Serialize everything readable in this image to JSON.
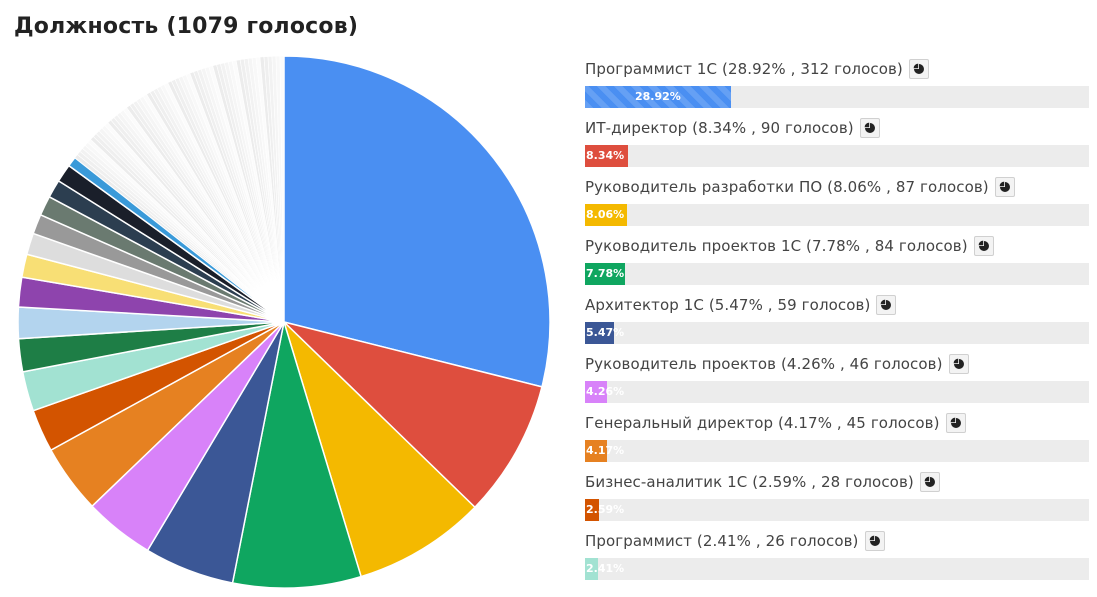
{
  "page": {
    "title": "Должность (1079 голосов)"
  },
  "chart_data": {
    "type": "pie",
    "title": "Должность (1079 голосов)",
    "total_votes": 1079,
    "slices": [
      {
        "label": "Программист 1С",
        "percent": 28.92,
        "votes": 312,
        "color": "#4a8ff2"
      },
      {
        "label": "ИТ-директор",
        "percent": 8.34,
        "votes": 90,
        "color": "#de4e3e"
      },
      {
        "label": "Руководитель разработки ПО",
        "percent": 8.06,
        "votes": 87,
        "color": "#f4b900"
      },
      {
        "label": "Руководитель проектов 1С",
        "percent": 7.78,
        "votes": 84,
        "color": "#0fa660"
      },
      {
        "label": "Архитектор 1С",
        "percent": 5.47,
        "votes": 59,
        "color": "#3b5796"
      },
      {
        "label": "Руководитель проектов",
        "percent": 4.26,
        "votes": 46,
        "color": "#d882f9"
      },
      {
        "label": "Генеральный директор",
        "percent": 4.17,
        "votes": 45,
        "color": "#e68121"
      },
      {
        "label": "Бизнес-аналитик 1С",
        "percent": 2.59,
        "votes": 28,
        "color": "#d35400"
      },
      {
        "label": "Программист",
        "percent": 2.41,
        "votes": 26,
        "color": "#a2e2d2"
      }
    ],
    "unlabeled_slice_percents": [
      2.0,
      1.9,
      1.8,
      1.4,
      1.3,
      1.2,
      1.2,
      1.1,
      1.1,
      0.6
    ],
    "unlabeled_slice_colors": [
      "#1e7e46",
      "#b3d4ee",
      "#8e44ad",
      "#f8df75",
      "#dddddd",
      "#999999",
      "#6a7a70",
      "#2c3e50",
      "#1a1f2a",
      "#3a9ad9"
    ]
  },
  "list": {
    "items": [
      {
        "text": "Программист 1С (28.92% , 312 голосов)",
        "bar_label": "28.92%",
        "percent": 28.92,
        "color": "#4a8ff2",
        "hatch": true
      },
      {
        "text": "ИТ-директор (8.34% , 90 голосов)",
        "bar_label": "8.34%",
        "percent": 8.34,
        "color": "#de4e3e",
        "hatch": false
      },
      {
        "text": "Руководитель разработки ПО (8.06% , 87 голосов)",
        "bar_label": "8.06%",
        "percent": 8.06,
        "color": "#f4b900",
        "hatch": false
      },
      {
        "text": "Руководитель проектов 1С (7.78% , 84 голосов)",
        "bar_label": "7.78%",
        "percent": 7.78,
        "color": "#0fa660",
        "hatch": false
      },
      {
        "text": "Архитектор 1С (5.47% , 59 голосов)",
        "bar_label": "5.47%",
        "percent": 5.47,
        "color": "#3b5796",
        "hatch": false
      },
      {
        "text": "Руководитель проектов (4.26% , 46 голосов)",
        "bar_label": "4.26%",
        "percent": 4.26,
        "color": "#d882f9",
        "hatch": false
      },
      {
        "text": "Генеральный директор (4.17% , 45 голосов)",
        "bar_label": "4.17%",
        "percent": 4.17,
        "color": "#e68121",
        "hatch": false
      },
      {
        "text": "Бизнес-аналитик 1С (2.59% , 28 голосов)",
        "bar_label": "2.59%",
        "percent": 2.59,
        "color": "#d35400",
        "hatch": false
      },
      {
        "text": "Программист (2.41% , 26 голосов)",
        "bar_label": "2.41%",
        "percent": 2.41,
        "color": "#a2e2d2",
        "hatch": false
      }
    ],
    "pie_button_icon": "pie-chart-icon"
  }
}
